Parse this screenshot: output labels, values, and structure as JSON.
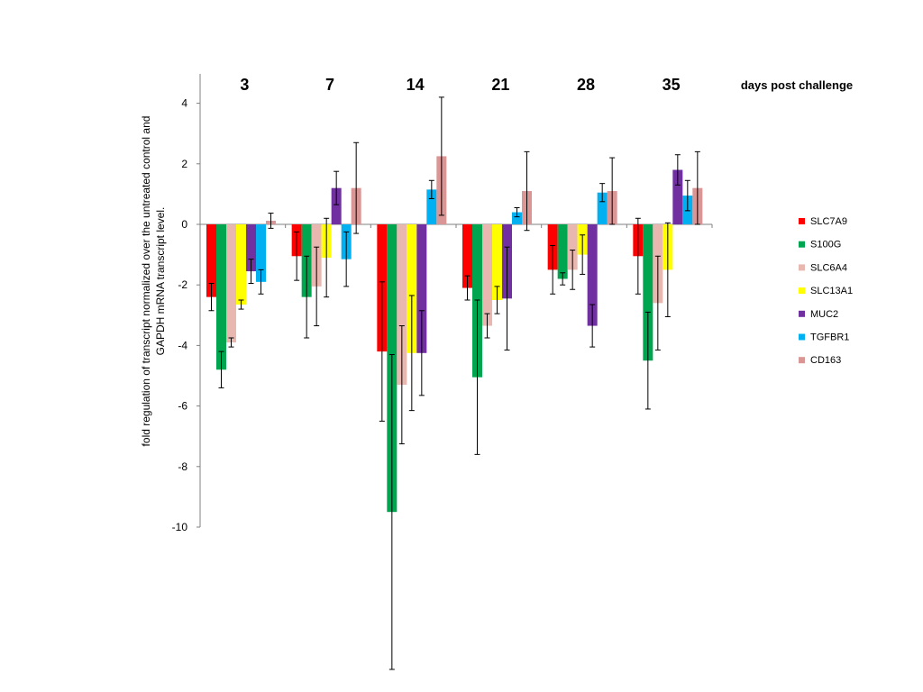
{
  "chart_data": {
    "type": "bar",
    "categories": [
      "3",
      "7",
      "14",
      "21",
      "28",
      "35"
    ],
    "category_axis_title": "days post challenge",
    "ylabel": "fold regulation of transcript normalized over  the untreated control and GAPDH mRNA transcript level.",
    "ylim": [
      -10,
      5
    ],
    "yticks": [
      4,
      2,
      0,
      -2,
      -4,
      -6,
      -8,
      -10
    ],
    "grid": false,
    "legend_position": "right",
    "series": [
      {
        "name": "SLC7A9",
        "color": "#ff0000",
        "values": [
          -2.4,
          -1.05,
          -4.2,
          -2.1,
          -1.5,
          -1.05
        ],
        "errors": [
          0.45,
          0.8,
          2.3,
          0.4,
          0.8,
          1.25
        ]
      },
      {
        "name": "S100G",
        "color": "#00a550",
        "values": [
          -4.8,
          -2.4,
          -9.5,
          -5.05,
          -1.8,
          -4.5
        ],
        "errors": [
          0.6,
          1.35,
          5.2,
          2.55,
          0.2,
          1.6
        ]
      },
      {
        "name": "SLC6A4",
        "color": "#e8b8b0",
        "values": [
          -3.9,
          -2.05,
          -5.3,
          -3.35,
          -1.5,
          -2.6
        ],
        "errors": [
          0.15,
          1.3,
          1.95,
          0.4,
          0.65,
          1.55
        ]
      },
      {
        "name": "SLC13A1",
        "color": "#ffff00",
        "values": [
          -2.65,
          -1.1,
          -4.25,
          -2.5,
          -1.0,
          -1.5
        ],
        "errors": [
          0.15,
          1.3,
          1.9,
          0.45,
          0.65,
          1.55
        ]
      },
      {
        "name": "MUC2",
        "color": "#7030a0",
        "values": [
          -1.55,
          1.2,
          -4.25,
          -2.45,
          -3.35,
          1.8
        ],
        "errors": [
          0.4,
          0.55,
          1.4,
          1.7,
          0.7,
          0.5
        ]
      },
      {
        "name": "TGFBR1",
        "color": "#00b0f0",
        "values": [
          -1.9,
          -1.15,
          1.15,
          0.4,
          1.05,
          0.95
        ],
        "errors": [
          0.4,
          0.9,
          0.3,
          0.15,
          0.3,
          0.5
        ]
      },
      {
        "name": "CD163",
        "color": "#d99694",
        "values": [
          0.12,
          1.2,
          2.25,
          1.1,
          1.1,
          1.2
        ],
        "errors": [
          0.25,
          1.5,
          1.95,
          1.3,
          1.1,
          1.2
        ]
      }
    ]
  }
}
